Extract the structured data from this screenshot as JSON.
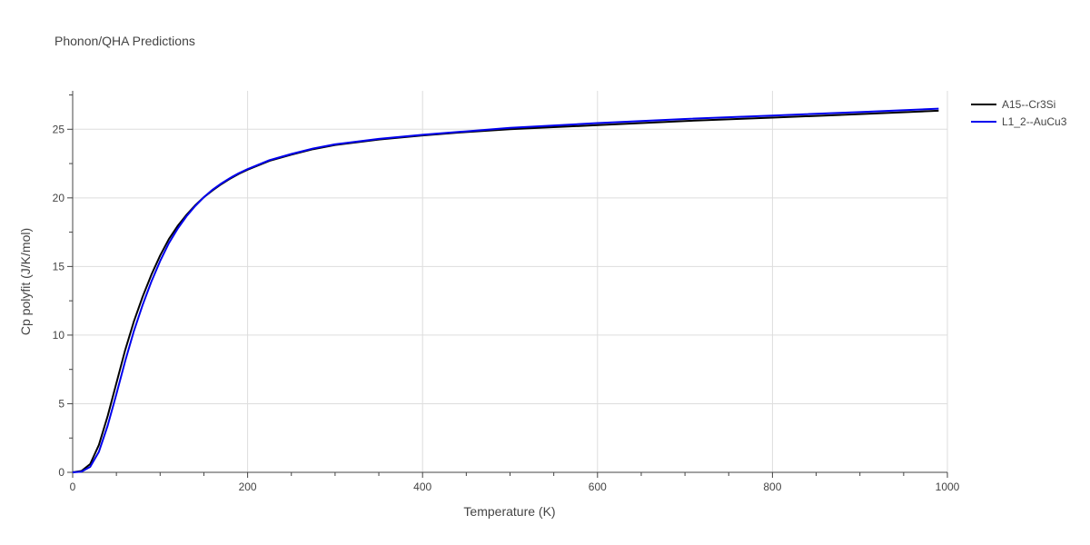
{
  "chart_data": {
    "type": "line",
    "title": "Phonon/QHA Predictions",
    "xlabel": "Temperature (K)",
    "ylabel": "Cp polyfit (J/K/mol)",
    "xlim": [
      0,
      1000
    ],
    "ylim": [
      0,
      27.8
    ],
    "xticks": [
      0,
      200,
      400,
      600,
      800,
      1000
    ],
    "xtick_labels": [
      "0",
      "200",
      "400",
      "600",
      "800",
      "1000"
    ],
    "yticks": [
      0,
      5,
      10,
      15,
      20,
      25
    ],
    "ytick_labels": [
      "0",
      "5",
      "10",
      "15",
      "20",
      "25"
    ],
    "grid": true,
    "legend_position": "top-right",
    "series": [
      {
        "name": "A15--Cr3Si",
        "color": "#000000",
        "x": [
          0,
          10,
          20,
          30,
          40,
          50,
          60,
          70,
          80,
          90,
          100,
          110,
          120,
          130,
          140,
          150,
          160,
          170,
          180,
          190,
          200,
          225,
          250,
          275,
          300,
          350,
          400,
          450,
          500,
          600,
          700,
          800,
          900,
          990
        ],
        "y": [
          0,
          0.1,
          0.6,
          2.0,
          4.1,
          6.5,
          8.9,
          11.0,
          12.8,
          14.4,
          15.8,
          17.0,
          17.95,
          18.75,
          19.45,
          20.05,
          20.55,
          21.0,
          21.4,
          21.75,
          22.05,
          22.7,
          23.15,
          23.55,
          23.85,
          24.25,
          24.55,
          24.8,
          25.0,
          25.3,
          25.6,
          25.85,
          26.1,
          26.35
        ]
      },
      {
        "name": "L1_2--AuCu3",
        "color": "#0000ee",
        "x": [
          0,
          10,
          20,
          30,
          40,
          50,
          60,
          70,
          80,
          90,
          100,
          110,
          120,
          130,
          140,
          150,
          160,
          170,
          180,
          190,
          200,
          225,
          250,
          275,
          300,
          350,
          400,
          450,
          500,
          600,
          700,
          800,
          900,
          990
        ],
        "y": [
          0,
          0.05,
          0.4,
          1.5,
          3.4,
          5.7,
          8.1,
          10.3,
          12.2,
          13.9,
          15.4,
          16.7,
          17.75,
          18.65,
          19.4,
          20.05,
          20.6,
          21.05,
          21.45,
          21.8,
          22.1,
          22.75,
          23.2,
          23.6,
          23.9,
          24.3,
          24.6,
          24.85,
          25.1,
          25.45,
          25.75,
          26.0,
          26.25,
          26.5
        ]
      }
    ]
  }
}
